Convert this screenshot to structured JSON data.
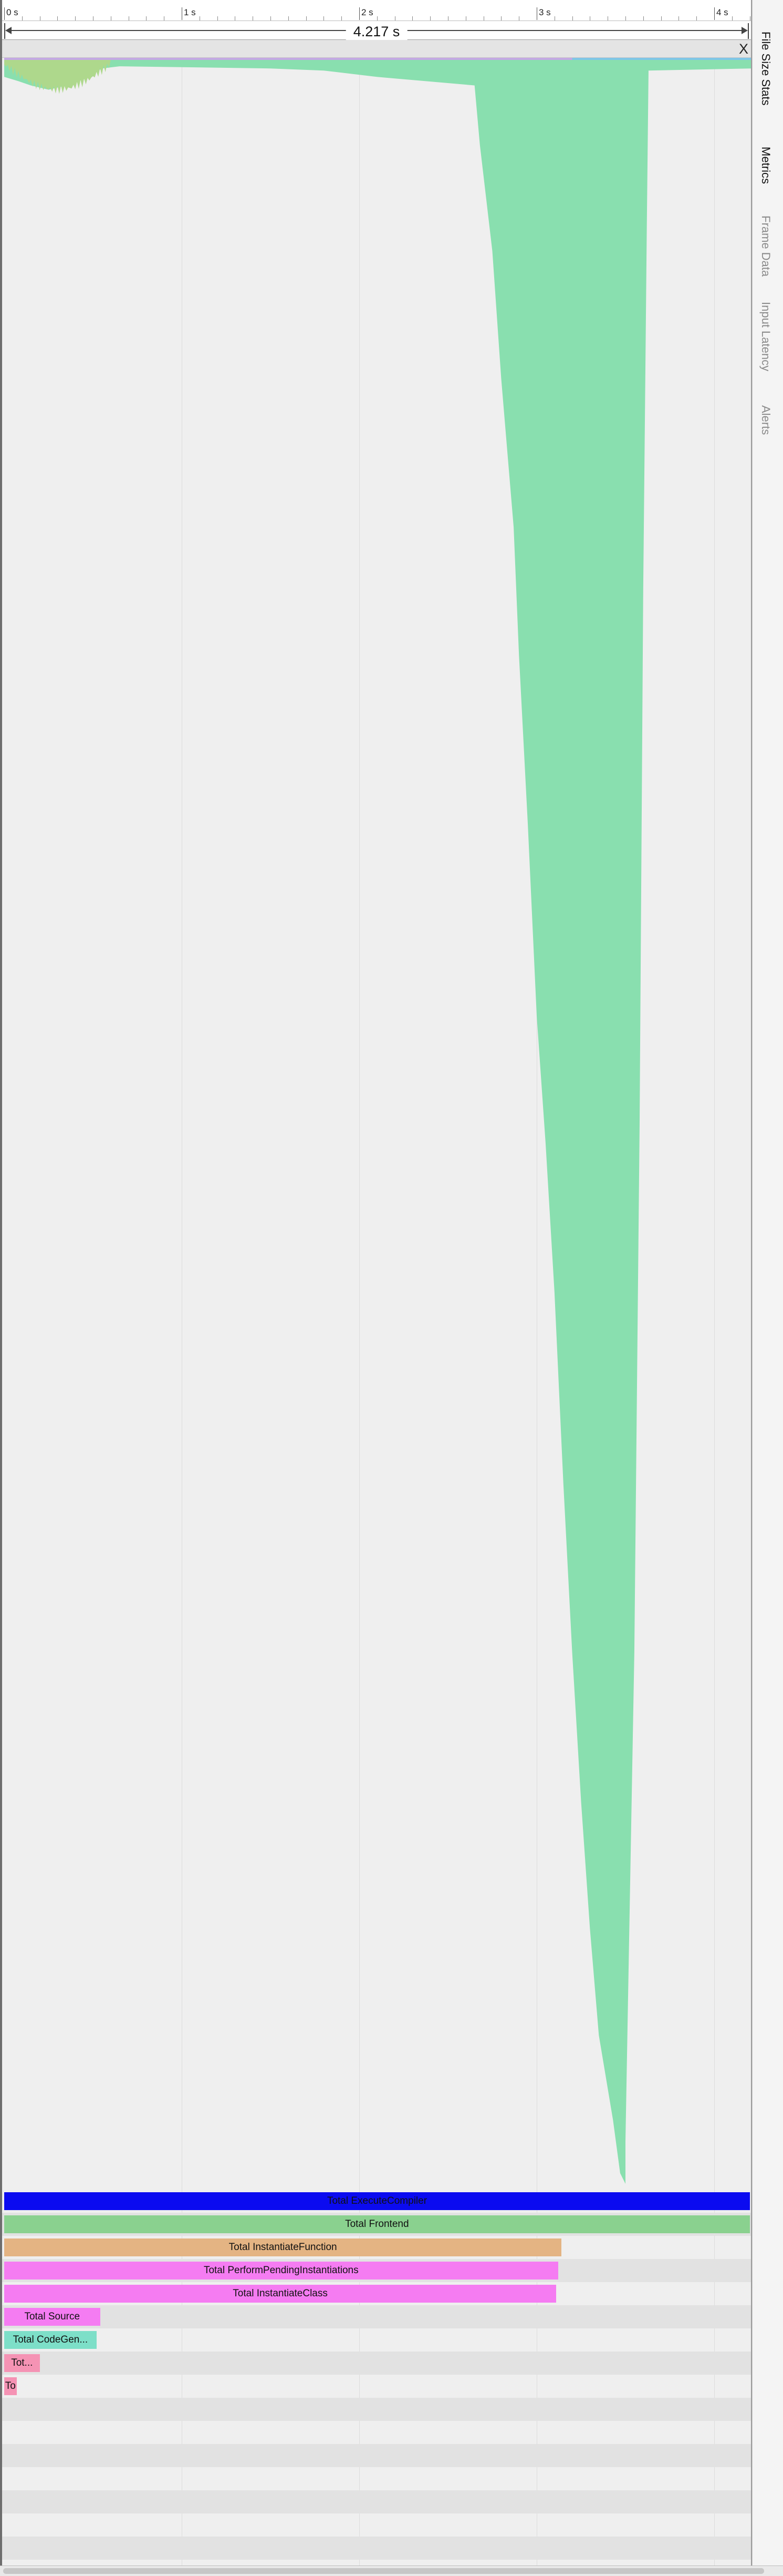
{
  "timeline": {
    "start_s": 0,
    "end_s": 4.217,
    "tick_labels": [
      "0 s",
      "1 s",
      "2 s",
      "3 s",
      "4 s"
    ],
    "tick_values_s": [
      0,
      1,
      2,
      3,
      4
    ],
    "minor_ticks_per_second": 10,
    "range_label": "4.217 s",
    "close_label": "X"
  },
  "counter_track": {
    "description_colors": {
      "main": "#89dfaf",
      "early": "#aed88c",
      "top_band_a": "#c4a8e4",
      "top_band_b": "#7fc6e8"
    }
  },
  "chart_data": {
    "type": "area",
    "x_unit": "s",
    "x_range": [
      0,
      4.217
    ],
    "y_range": [
      0,
      1
    ],
    "series": [
      {
        "x": [
          0,
          0.08,
          0.15,
          0.25,
          0.35,
          0.45,
          0.55,
          0.65,
          1.5,
          1.8,
          2.1,
          2.65,
          2.68,
          2.75,
          2.8,
          2.87,
          2.9,
          2.95,
          3.0,
          3.05,
          3.1,
          3.15,
          3.2,
          3.25,
          3.3,
          3.35,
          3.43,
          3.47,
          3.5,
          3.5,
          3.55,
          3.58,
          3.6,
          3.62,
          3.63,
          3.63,
          4.217
        ],
        "y": [
          0.008,
          0.01,
          0.012,
          0.014,
          0.012,
          0.009,
          0.004,
          0.003,
          0.004,
          0.005,
          0.008,
          0.012,
          0.04,
          0.09,
          0.15,
          0.22,
          0.28,
          0.36,
          0.45,
          0.51,
          0.58,
          0.67,
          0.75,
          0.82,
          0.88,
          0.93,
          0.97,
          0.995,
          1.0,
          0.98,
          0.75,
          0.5,
          0.25,
          0.08,
          0.006,
          0.005,
          0.004
        ]
      }
    ]
  },
  "slice_rows": [
    {
      "label": "Total ExecuteCompiler",
      "start_s": 0,
      "end_s": 4.217,
      "color": "#0b0bf0"
    },
    {
      "label": "Total Frontend",
      "start_s": 0,
      "end_s": 4.2,
      "color": "#8ad18f"
    },
    {
      "label": "Total InstantiateFunction",
      "start_s": 0,
      "end_s": 3.14,
      "color": "#e4b483"
    },
    {
      "label": "Total PerformPendingInstantiations",
      "start_s": 0,
      "end_s": 3.12,
      "color": "#f57cf2"
    },
    {
      "label": "Total InstantiateClass",
      "start_s": 0,
      "end_s": 3.11,
      "color": "#f57cf2"
    },
    {
      "label": "Total Source",
      "start_s": 0,
      "end_s": 0.54,
      "color": "#f57cf2"
    },
    {
      "label": "Total CodeGen...",
      "start_s": 0,
      "end_s": 0.52,
      "color": "#7ddfc8"
    },
    {
      "label": "Tot...",
      "start_s": 0,
      "end_s": 0.2,
      "color": "#f593b4"
    },
    {
      "label": "To",
      "start_s": 0,
      "end_s": 0.07,
      "color": "#f593b4"
    }
  ],
  "empty_row_count": 8,
  "sidebar": {
    "tabs": [
      {
        "label": "File Size Stats",
        "active": true
      },
      {
        "label": "Metrics",
        "active": true
      },
      {
        "label": "Frame Data",
        "active": false
      },
      {
        "label": "Input Latency",
        "active": false
      },
      {
        "label": "Alerts",
        "active": false
      }
    ]
  },
  "colors": {
    "track_background": "#efefef",
    "grid": "#dcdcdc",
    "row_alt": "#e2e2e2",
    "tab_active": "#111111",
    "tab_inactive": "#8a8a8a"
  }
}
